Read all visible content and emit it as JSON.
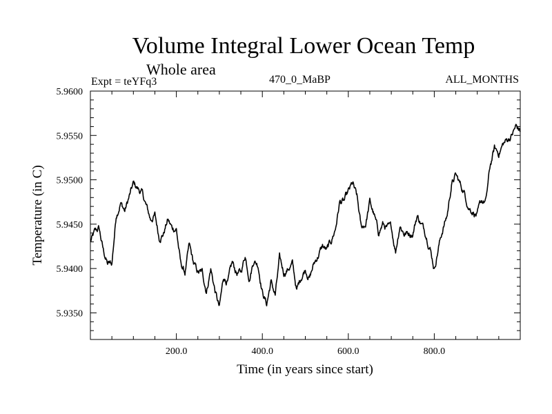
{
  "header": {
    "title": "Volume Integral Lower Ocean Temp",
    "subtitle": "Whole area",
    "expt": "Expt = teYFq3",
    "period": "470_0_MaBP",
    "months": "ALL_MONTHS"
  },
  "chart_data": {
    "type": "line",
    "title": "Volume Integral Lower Ocean Temp",
    "xlabel": "Time (in years since start)",
    "ylabel": "Temperature (in C)",
    "xlim": [
      0,
      1000
    ],
    "ylim": [
      5.932,
      5.96
    ],
    "xticks": [
      200,
      400,
      600,
      800
    ],
    "xtick_labels": [
      "200.0",
      "400.0",
      "600.0",
      "800.0"
    ],
    "yticks": [
      5.935,
      5.94,
      5.945,
      5.95,
      5.955,
      5.96
    ],
    "ytick_labels": [
      "5.9350",
      "5.9400",
      "5.9450",
      "5.9500",
      "5.9550",
      "5.9600"
    ],
    "grid": false,
    "series": [
      {
        "name": "Volume Integral Lower Ocean Temp",
        "color": "#000000",
        "x": [
          0,
          10,
          20,
          30,
          40,
          50,
          60,
          70,
          80,
          90,
          100,
          110,
          120,
          130,
          140,
          150,
          160,
          170,
          180,
          190,
          200,
          210,
          220,
          230,
          240,
          250,
          260,
          270,
          280,
          290,
          300,
          310,
          320,
          330,
          340,
          350,
          360,
          370,
          380,
          390,
          400,
          410,
          420,
          430,
          440,
          450,
          460,
          470,
          480,
          490,
          500,
          510,
          520,
          530,
          540,
          550,
          560,
          570,
          580,
          590,
          600,
          610,
          620,
          630,
          640,
          650,
          660,
          670,
          680,
          690,
          700,
          710,
          720,
          730,
          740,
          750,
          760,
          770,
          780,
          790,
          800,
          810,
          820,
          830,
          840,
          850,
          860,
          870,
          880,
          890,
          900,
          910,
          920,
          930,
          940,
          950,
          960,
          970,
          980,
          990,
          1000
        ],
        "values": [
          5.943,
          5.944,
          5.9445,
          5.942,
          5.9405,
          5.9405,
          5.946,
          5.9475,
          5.9465,
          5.948,
          5.9495,
          5.949,
          5.9485,
          5.947,
          5.9455,
          5.946,
          5.9435,
          5.944,
          5.9455,
          5.9445,
          5.9445,
          5.9405,
          5.9395,
          5.9425,
          5.9405,
          5.9395,
          5.9395,
          5.9375,
          5.94,
          5.9375,
          5.9355,
          5.939,
          5.9385,
          5.9405,
          5.9395,
          5.9395,
          5.9415,
          5.939,
          5.941,
          5.9405,
          5.9375,
          5.936,
          5.9385,
          5.937,
          5.941,
          5.9395,
          5.94,
          5.9405,
          5.9375,
          5.939,
          5.94,
          5.939,
          5.9405,
          5.9415,
          5.9425,
          5.942,
          5.943,
          5.9445,
          5.9475,
          5.9475,
          5.9485,
          5.9495,
          5.948,
          5.9445,
          5.945,
          5.9475,
          5.946,
          5.944,
          5.945,
          5.9445,
          5.9445,
          5.942,
          5.945,
          5.944,
          5.944,
          5.944,
          5.946,
          5.945,
          5.944,
          5.9425,
          5.94,
          5.9425,
          5.9445,
          5.946,
          5.9495,
          5.9505,
          5.9495,
          5.9485,
          5.947,
          5.9465,
          5.946,
          5.9475,
          5.9475,
          5.9515,
          5.9535,
          5.953,
          5.954,
          5.9545,
          5.955,
          5.956,
          5.9555
        ]
      }
    ]
  }
}
